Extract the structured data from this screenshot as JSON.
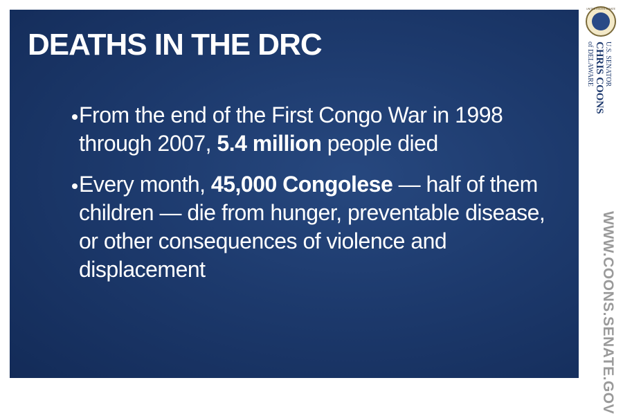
{
  "slide": {
    "title": "DEATHS IN THE DRC",
    "bullets": [
      {
        "parts": [
          "From the end of the First Congo War in 1998 through 2007, ",
          "5.4 million",
          " people died"
        ]
      },
      {
        "parts": [
          "Every month, ",
          "45,000 Congolese",
          " — half of them children — die from hunger, preventable disease, or other consequences of violence and displacement"
        ]
      }
    ]
  },
  "sidebar": {
    "seal_text": "UNITED STATES SENATE",
    "office": "U.S. SENATOR",
    "name": "CHRIS COONS",
    "state": "of DELAWARE",
    "website": "WWW.COONS.SENATE.GOV"
  }
}
